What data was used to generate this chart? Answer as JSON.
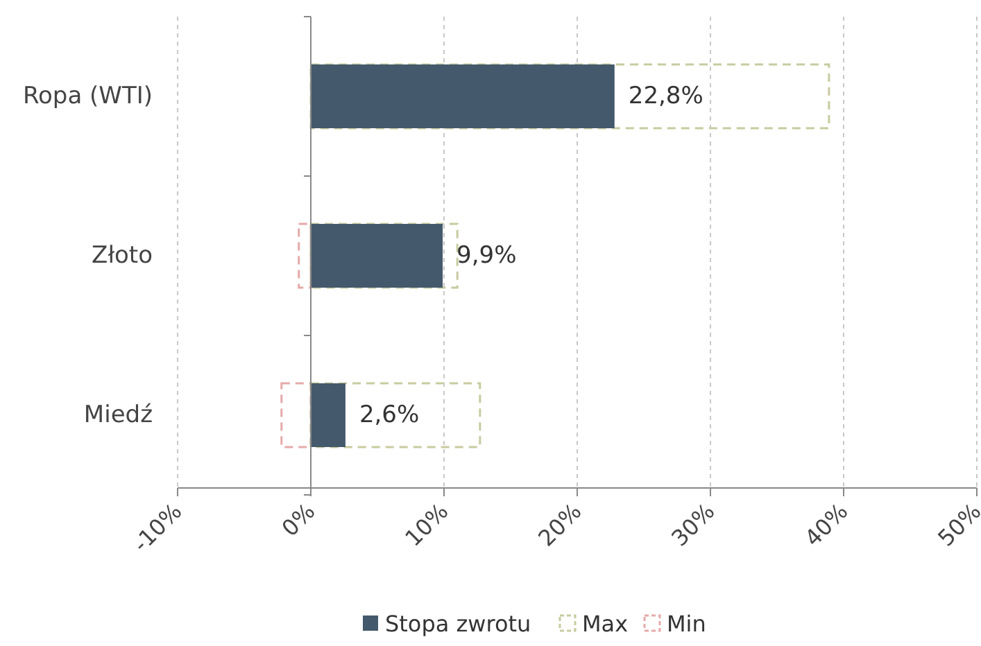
{
  "chart_data": {
    "type": "bar",
    "orientation": "horizontal",
    "categories": [
      "Ropa (WTI)",
      "Złoto",
      "Miedź"
    ],
    "series": [
      {
        "name": "Stopa zwrotu",
        "color": "#44596b",
        "values": [
          22.8,
          9.9,
          2.6
        ],
        "value_labels": [
          "22,8%",
          "9,9%",
          "2,6%"
        ]
      },
      {
        "name": "Max",
        "color": "#c8cba0",
        "values": [
          38.9,
          11.0,
          12.7
        ],
        "line_style": "dashed"
      },
      {
        "name": "Min",
        "color": "#e6a9a9",
        "values": [
          null,
          -0.9,
          -2.2
        ],
        "line_style": "dashed"
      }
    ],
    "xlim": [
      -10,
      50
    ],
    "xticks": [
      {
        "value": -10,
        "label": "-10%"
      },
      {
        "value": 0,
        "label": "0%"
      },
      {
        "value": 10,
        "label": "10%"
      },
      {
        "value": 20,
        "label": "20%"
      },
      {
        "value": 30,
        "label": "30%"
      },
      {
        "value": 40,
        "label": "40%"
      },
      {
        "value": 50,
        "label": "50%"
      }
    ],
    "grid": "x",
    "legend": "bottom"
  }
}
